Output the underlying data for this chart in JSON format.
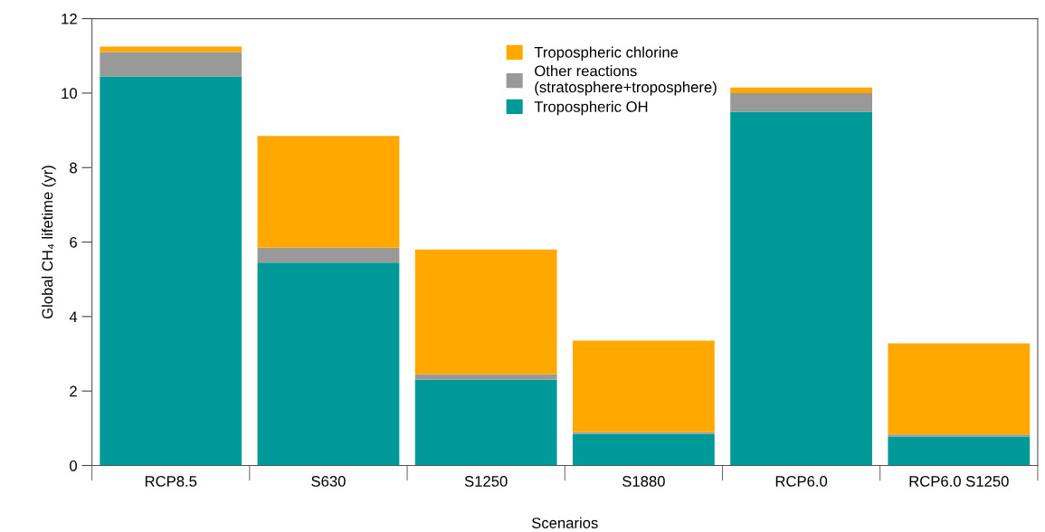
{
  "chart_data": {
    "type": "bar",
    "stacked": true,
    "xlabel": "Scenarios",
    "ylabel": "Global CH₄ lifetime (yr)",
    "categories": [
      "RCP8.5",
      "S630",
      "S1250",
      "S1880",
      "RCP6.0",
      "RCP6.0 S1250"
    ],
    "series": [
      {
        "name": "Tropospheric OH",
        "color": "#009999",
        "values": [
          10.45,
          5.45,
          2.3,
          0.85,
          9.5,
          0.78
        ]
      },
      {
        "name": "Other reactions\n(stratosphere+troposphere)",
        "color": "#999999",
        "values": [
          0.65,
          0.4,
          0.15,
          0.05,
          0.5,
          0.05
        ]
      },
      {
        "name": "Tropospheric chlorine",
        "color": "#ffa800",
        "values": [
          0.15,
          3.0,
          3.35,
          2.45,
          0.15,
          2.45
        ]
      }
    ],
    "ylim": [
      0,
      12
    ],
    "yticks": [
      0,
      2,
      4,
      6,
      8,
      10,
      12
    ],
    "grid": false,
    "legend": "top"
  }
}
